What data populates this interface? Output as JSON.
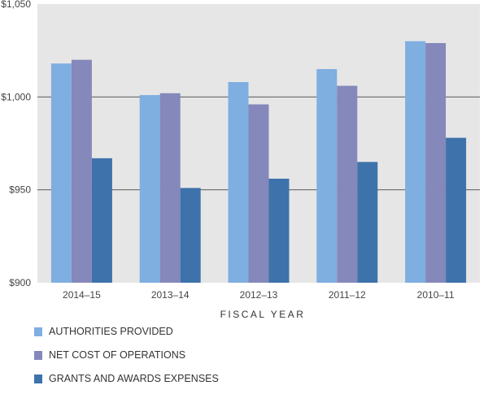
{
  "chart_data": {
    "type": "bar",
    "title": "",
    "xlabel": "FISCAL YEAR",
    "ylabel": "",
    "categories": [
      "2014–15",
      "2013–14",
      "2012–13",
      "2011–12",
      "2010–11"
    ],
    "ylim": [
      900,
      1050
    ],
    "yticks": [
      900,
      950,
      1000,
      1050
    ],
    "ytick_labels": [
      "$900",
      "$950",
      "$1,000",
      "$1,050"
    ],
    "grid": "horizontal",
    "legend_position": "bottom-left",
    "series": [
      {
        "name": "AUTHORITIES PROVIDED",
        "color": "#7faee0",
        "values": [
          1018,
          1001,
          1008,
          1015,
          1030
        ]
      },
      {
        "name": "NET COST OF OPERATIONS",
        "color": "#8588ba",
        "values": [
          1020,
          1002,
          996,
          1006,
          1029
        ]
      },
      {
        "name": "GRANTS AND AWARDS EXPENSES",
        "color": "#3e72aa",
        "values": [
          967,
          951,
          956,
          965,
          978
        ]
      }
    ]
  }
}
